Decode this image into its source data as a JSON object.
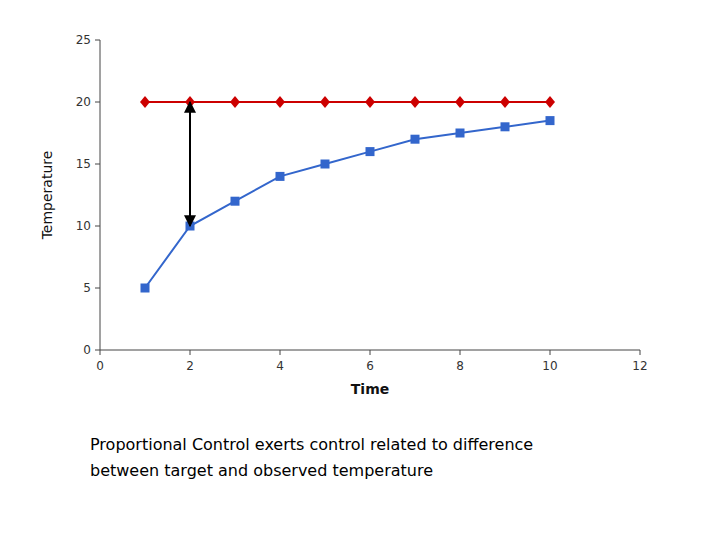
{
  "chart_data": {
    "type": "line",
    "x": [
      1,
      2,
      3,
      4,
      5,
      6,
      7,
      8,
      9,
      10
    ],
    "series": [
      {
        "color": "#cc0000",
        "marker": "diamond",
        "values": [
          20,
          20,
          20,
          20,
          20,
          20,
          20,
          20,
          20,
          20
        ]
      },
      {
        "color": "#3366cc",
        "marker": "square",
        "values": [
          5,
          10,
          12,
          14,
          15,
          16,
          17,
          17.5,
          18,
          18.5
        ]
      }
    ],
    "annotations": [
      {
        "type": "arrow",
        "x": 2,
        "y1": 10,
        "y2": 20
      }
    ],
    "xlabel": "Time",
    "ylabel": "Temperature",
    "caption": [
      "Proportional Control exerts control related to difference",
      "between target and observed temperature"
    ],
    "xlim": [
      0,
      12
    ],
    "ylim": [
      0,
      25
    ],
    "xticks": [
      0,
      2,
      4,
      6,
      8,
      10,
      12
    ],
    "yticks": [
      0,
      5,
      10,
      15,
      20,
      25
    ],
    "grid": false
  }
}
